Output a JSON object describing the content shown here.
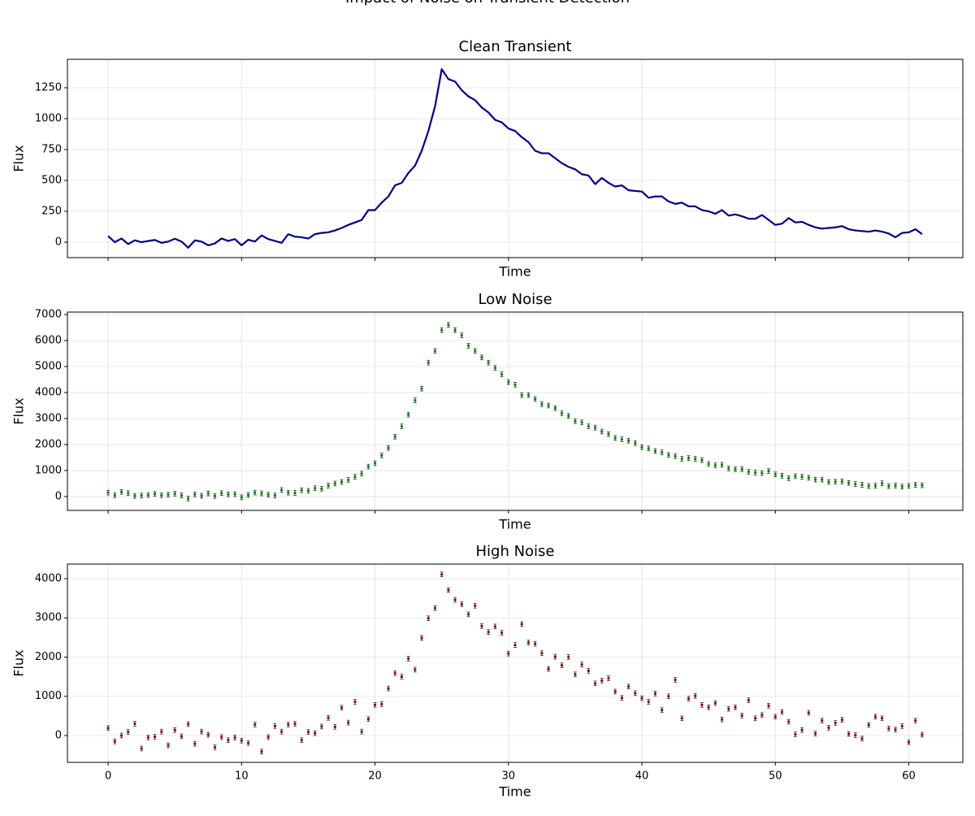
{
  "title": "Impact of Noise on Transient Detection",
  "chart_data": [
    {
      "type": "line",
      "title": "Clean Transient",
      "x_label": "Time",
      "y_label": "Flux",
      "color": "#000080",
      "grid": true,
      "xlim": [
        -3.05,
        64.05
      ],
      "xticks": [
        0,
        10,
        20,
        30,
        40,
        50,
        60
      ],
      "show_xticklabels": false,
      "ylim": [
        -125,
        1480
      ],
      "yticks": [
        0,
        250,
        500,
        750,
        1000,
        1250
      ],
      "x": [
        0,
        0.5,
        1,
        1.5,
        2,
        2.5,
        3,
        3.5,
        4,
        4.5,
        5,
        5.5,
        6,
        6.5,
        7,
        7.5,
        8,
        8.5,
        9,
        9.5,
        10,
        10.5,
        11,
        11.5,
        12,
        12.5,
        13,
        13.5,
        14,
        14.5,
        15,
        15.5,
        16,
        16.5,
        17,
        17.5,
        18,
        18.5,
        19,
        19.5,
        20,
        20.5,
        21,
        21.5,
        22,
        22.5,
        23,
        23.5,
        24,
        24.5,
        25,
        25.5,
        26,
        26.5,
        27,
        27.5,
        28,
        28.5,
        29,
        29.5,
        30,
        30.5,
        31,
        31.5,
        32,
        32.5,
        33,
        33.5,
        34,
        34.5,
        35,
        35.5,
        36,
        36.5,
        37,
        37.5,
        38,
        38.5,
        39,
        39.5,
        40,
        40.5,
        41,
        41.5,
        42,
        42.5,
        43,
        43.5,
        44,
        44.5,
        45,
        45.5,
        46,
        46.5,
        47,
        47.5,
        48,
        48.5,
        49,
        49.5,
        50,
        50.5,
        51,
        51.5,
        52,
        52.5,
        53,
        53.5,
        54,
        54.5,
        55,
        55.5,
        56,
        56.5,
        57,
        57.5,
        58,
        58.5,
        59,
        59.5,
        60,
        60.5,
        61
      ],
      "values": [
        50,
        0,
        30,
        -15,
        15,
        0,
        10,
        18,
        -5,
        5,
        28,
        5,
        -45,
        15,
        5,
        -25,
        -10,
        30,
        10,
        25,
        -25,
        20,
        5,
        55,
        25,
        10,
        -5,
        65,
        45,
        40,
        30,
        65,
        75,
        80,
        95,
        115,
        140,
        160,
        180,
        260,
        260,
        320,
        370,
        460,
        480,
        560,
        620,
        740,
        900,
        1100,
        1400,
        1320,
        1300,
        1230,
        1180,
        1150,
        1090,
        1050,
        990,
        970,
        920,
        900,
        850,
        810,
        740,
        720,
        720,
        680,
        640,
        610,
        590,
        550,
        540,
        470,
        520,
        480,
        450,
        460,
        420,
        415,
        410,
        360,
        370,
        370,
        330,
        310,
        320,
        290,
        290,
        260,
        250,
        230,
        260,
        215,
        225,
        210,
        190,
        190,
        220,
        180,
        140,
        150,
        195,
        160,
        165,
        140,
        120,
        110,
        115,
        120,
        130,
        105,
        95,
        90,
        85,
        95,
        85,
        70,
        40,
        75,
        80,
        105,
        65
      ]
    },
    {
      "type": "scatter",
      "title": "Low Noise",
      "x_label": "Time",
      "y_label": "Flux",
      "color": "#008000",
      "error_color": "#333333",
      "yerr": 90,
      "grid": true,
      "xlim": [
        -3.05,
        64.05
      ],
      "xticks": [
        0,
        10,
        20,
        30,
        40,
        50,
        60
      ],
      "show_xticklabels": false,
      "ylim": [
        -534,
        7094
      ],
      "yticks": [
        0,
        1000,
        2000,
        3000,
        4000,
        5000,
        6000,
        7000
      ],
      "x": [
        0,
        0.5,
        1,
        1.5,
        2,
        2.5,
        3,
        3.5,
        4,
        4.5,
        5,
        5.5,
        6,
        6.5,
        7,
        7.5,
        8,
        8.5,
        9,
        9.5,
        10,
        10.5,
        11,
        11.5,
        12,
        12.5,
        13,
        13.5,
        14,
        14.5,
        15,
        15.5,
        16,
        16.5,
        17,
        17.5,
        18,
        18.5,
        19,
        19.5,
        20,
        20.5,
        21,
        21.5,
        22,
        22.5,
        23,
        23.5,
        24,
        24.5,
        25,
        25.5,
        26,
        26.5,
        27,
        27.5,
        28,
        28.5,
        29,
        29.5,
        30,
        30.5,
        31,
        31.5,
        32,
        32.5,
        33,
        33.5,
        34,
        34.5,
        35,
        35.5,
        36,
        36.5,
        37,
        37.5,
        38,
        38.5,
        39,
        39.5,
        40,
        40.5,
        41,
        41.5,
        42,
        42.5,
        43,
        43.5,
        44,
        44.5,
        45,
        45.5,
        46,
        46.5,
        47,
        47.5,
        48,
        48.5,
        49,
        49.5,
        50,
        50.5,
        51,
        51.5,
        52,
        52.5,
        53,
        53.5,
        54,
        54.5,
        55,
        55.5,
        56,
        56.5,
        57,
        57.5,
        58,
        58.5,
        59,
        59.5,
        60,
        60.5,
        61
      ],
      "values": [
        150,
        50,
        180,
        130,
        20,
        40,
        60,
        100,
        50,
        70,
        110,
        40,
        -80,
        80,
        30,
        120,
        20,
        130,
        80,
        90,
        -30,
        60,
        150,
        120,
        70,
        40,
        250,
        150,
        140,
        240,
        220,
        320,
        300,
        420,
        500,
        560,
        640,
        760,
        880,
        1150,
        1280,
        1580,
        1870,
        2300,
        2700,
        3150,
        3700,
        4150,
        5150,
        5600,
        6400,
        6600,
        6400,
        6200,
        5800,
        5600,
        5350,
        5150,
        4950,
        4700,
        4400,
        4300,
        3900,
        3900,
        3750,
        3550,
        3500,
        3400,
        3200,
        3100,
        2900,
        2850,
        2700,
        2650,
        2500,
        2400,
        2250,
        2200,
        2150,
        2050,
        1900,
        1850,
        1750,
        1700,
        1600,
        1550,
        1450,
        1480,
        1450,
        1400,
        1250,
        1200,
        1220,
        1080,
        1050,
        1050,
        950,
        920,
        900,
        980,
        850,
        800,
        700,
        780,
        760,
        720,
        650,
        650,
        560,
        570,
        580,
        520,
        480,
        450,
        400,
        420,
        510,
        400,
        420,
        380,
        410,
        450,
        430
      ]
    },
    {
      "type": "scatter",
      "title": "High Noise",
      "x_label": "Time",
      "y_label": "Flux",
      "color": "#8b0000",
      "error_color": "#333333",
      "yerr": 60,
      "grid": true,
      "xlim": [
        -3.05,
        64.05
      ],
      "xticks": [
        0,
        10,
        20,
        30,
        40,
        50,
        60
      ],
      "show_xticklabels": true,
      "ylim": [
        -684,
        4373
      ],
      "yticks": [
        0,
        1000,
        2000,
        3000,
        4000
      ],
      "x": [
        0,
        0.5,
        1,
        1.5,
        2,
        2.5,
        3,
        3.5,
        4,
        4.5,
        5,
        5.5,
        6,
        6.5,
        7,
        7.5,
        8,
        8.5,
        9,
        9.5,
        10,
        10.5,
        11,
        11.5,
        12,
        12.5,
        13,
        13.5,
        14,
        14.5,
        15,
        15.5,
        16,
        16.5,
        17,
        17.5,
        18,
        18.5,
        19,
        19.5,
        20,
        20.5,
        21,
        21.5,
        22,
        22.5,
        23,
        23.5,
        24,
        24.5,
        25,
        25.5,
        26,
        26.5,
        27,
        27.5,
        28,
        28.5,
        29,
        29.5,
        30,
        30.5,
        31,
        31.5,
        32,
        32.5,
        33,
        33.5,
        34,
        34.5,
        35,
        35.5,
        36,
        36.5,
        37,
        37.5,
        38,
        38.5,
        39,
        39.5,
        40,
        40.5,
        41,
        41.5,
        42,
        42.5,
        43,
        43.5,
        44,
        44.5,
        45,
        45.5,
        46,
        46.5,
        47,
        47.5,
        48,
        48.5,
        49,
        49.5,
        50,
        50.5,
        51,
        51.5,
        52,
        52.5,
        53,
        53.5,
        54,
        54.5,
        55,
        55.5,
        56,
        56.5,
        57,
        57.5,
        58,
        58.5,
        59,
        59.5,
        60,
        60.5,
        61
      ],
      "values": [
        190,
        -150,
        0,
        90,
        300,
        -330,
        -50,
        -30,
        100,
        -250,
        140,
        -20,
        290,
        -210,
        100,
        20,
        -300,
        -40,
        -120,
        -50,
        -130,
        -190,
        280,
        -410,
        -40,
        240,
        100,
        280,
        300,
        -120,
        90,
        60,
        230,
        450,
        220,
        710,
        330,
        860,
        100,
        420,
        780,
        800,
        1200,
        1590,
        1500,
        1960,
        1680,
        2490,
        2990,
        3250,
        4110,
        3710,
        3460,
        3350,
        3090,
        3310,
        2790,
        2640,
        2780,
        2620,
        2090,
        2310,
        2840,
        2370,
        2340,
        2100,
        1700,
        2010,
        1790,
        2000,
        1560,
        1810,
        1650,
        1330,
        1400,
        1460,
        1120,
        960,
        1250,
        1080,
        950,
        860,
        1070,
        650,
        1000,
        1420,
        440,
        940,
        1010,
        780,
        720,
        830,
        410,
        680,
        720,
        510,
        900,
        440,
        520,
        760,
        480,
        600,
        350,
        30,
        140,
        580,
        50,
        380,
        200,
        320,
        400,
        40,
        10,
        -80,
        270,
        480,
        440,
        180,
        150,
        240,
        -170,
        380,
        20
      ]
    }
  ]
}
